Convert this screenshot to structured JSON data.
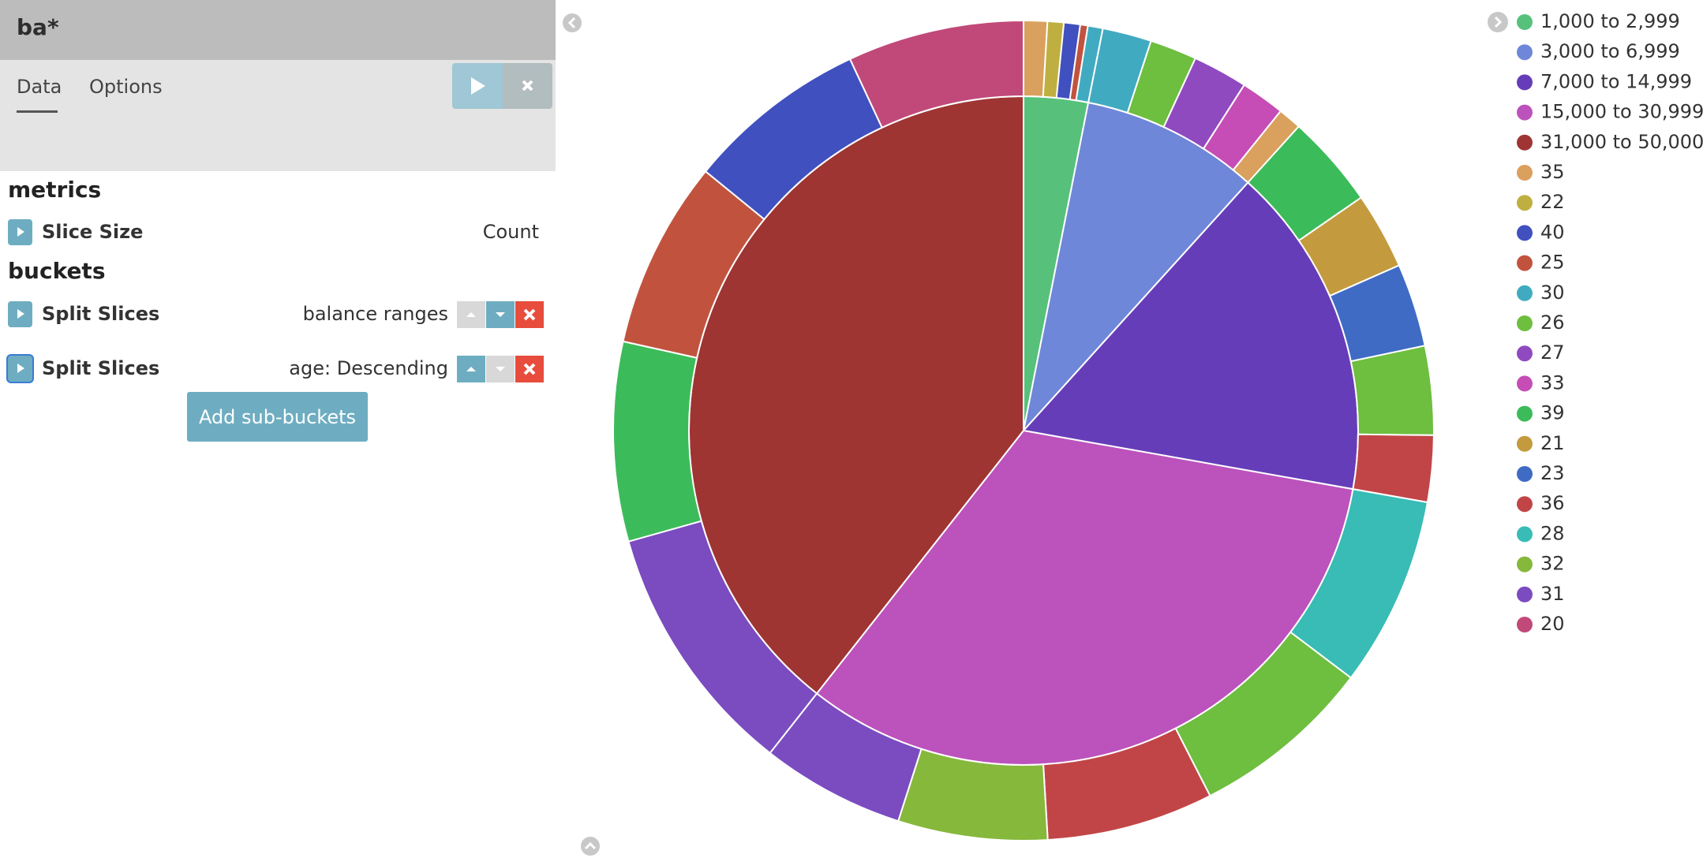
{
  "editor": {
    "title": "ba*",
    "tabs": [
      "Data",
      "Options"
    ],
    "metrics_heading": "metrics",
    "metrics": [
      {
        "label": "Slice Size",
        "value": "Count"
      }
    ],
    "buckets_heading": "buckets",
    "buckets": [
      {
        "label": "Split Slices",
        "value": "balance ranges"
      },
      {
        "label": "Split Slices",
        "value": "age: Descending"
      }
    ],
    "add_button": "Add sub-buckets"
  },
  "chart_data": {
    "type": "pie",
    "categories": [
      "1,000 to 2,999",
      "3,000 to 6,999",
      "7,000 to 14,999",
      "15,000 to 30,999",
      "31,000 to 50,000"
    ],
    "values": [
      3.1,
      8.6,
      16.1,
      32.8,
      39.4
    ],
    "colors": [
      "#57c17b",
      "#6f87d8",
      "#663db8",
      "#bc52bc",
      "#9e3533"
    ],
    "sub_slices": [
      [
        {
          "name": "35",
          "value": 0.93
        },
        {
          "name": "22",
          "value": 0.64
        },
        {
          "name": "40",
          "value": 0.64
        },
        {
          "name": "25",
          "value": 0.3
        },
        {
          "name": "30",
          "value": 0.59
        }
      ],
      [
        {
          "name": "30",
          "value": 1.93
        },
        {
          "name": "26",
          "value": 1.85
        },
        {
          "name": "27",
          "value": 2.16
        },
        {
          "name": "33",
          "value": 1.74
        },
        {
          "name": "35",
          "value": 0.92
        }
      ],
      [
        {
          "name": "39",
          "value": 3.68
        },
        {
          "name": "21",
          "value": 3.02
        },
        {
          "name": "23",
          "value": 3.28
        },
        {
          "name": "26",
          "value": 3.5
        },
        {
          "name": "36",
          "value": 2.62
        }
      ],
      [
        {
          "name": "28",
          "value": 7.5
        },
        {
          "name": "26",
          "value": 7.19
        },
        {
          "name": "36",
          "value": 6.57
        },
        {
          "name": "32",
          "value": 5.88
        },
        {
          "name": "31",
          "value": 5.66
        }
      ],
      [
        {
          "name": "31",
          "value": 10.04
        },
        {
          "name": "39",
          "value": 7.85
        },
        {
          "name": "25",
          "value": 7.4
        },
        {
          "name": "40",
          "value": 7.16
        },
        {
          "name": "20",
          "value": 6.95
        }
      ]
    ],
    "age_legend": [
      {
        "name": "35",
        "color": "#daa05d"
      },
      {
        "name": "22",
        "color": "#bfaf40"
      },
      {
        "name": "40",
        "color": "#4050bf"
      },
      {
        "name": "25",
        "color": "#c1533e"
      },
      {
        "name": "30",
        "color": "#40abc0"
      },
      {
        "name": "26",
        "color": "#6ebe3f"
      },
      {
        "name": "27",
        "color": "#904ac0"
      },
      {
        "name": "33",
        "color": "#c54db5"
      },
      {
        "name": "39",
        "color": "#3cbb5a"
      },
      {
        "name": "21",
        "color": "#c39a3d"
      },
      {
        "name": "23",
        "color": "#3f6bc4"
      },
      {
        "name": "36",
        "color": "#c14547"
      },
      {
        "name": "28",
        "color": "#38bcb5"
      },
      {
        "name": "32",
        "color": "#86b83c"
      },
      {
        "name": "31",
        "color": "#7b4bc0"
      },
      {
        "name": "20",
        "color": "#c1497a"
      }
    ]
  }
}
